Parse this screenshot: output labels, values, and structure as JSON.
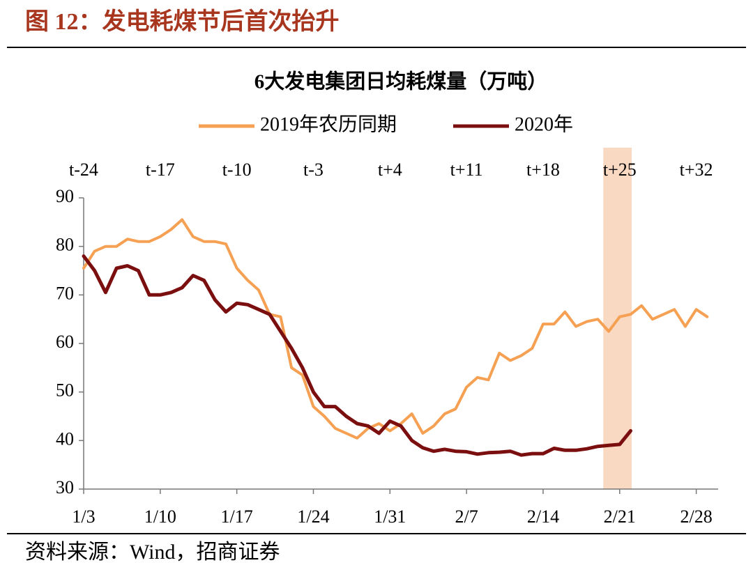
{
  "header": {
    "title": "图 12：发电耗煤节后首次抬升"
  },
  "footer": {
    "source": "资料来源：Wind，招商证券"
  },
  "chart_data": {
    "type": "line",
    "title": "6大发电集团日均耗煤量（万吨）",
    "xlim": [
      0,
      58
    ],
    "xticks": [
      {
        "value": 0,
        "label": "1/3"
      },
      {
        "value": 7,
        "label": "1/10"
      },
      {
        "value": 14,
        "label": "1/17"
      },
      {
        "value": 21,
        "label": "1/24"
      },
      {
        "value": 28,
        "label": "1/31"
      },
      {
        "value": 35,
        "label": "2/7"
      },
      {
        "value": 42,
        "label": "2/14"
      },
      {
        "value": 49,
        "label": "2/21"
      },
      {
        "value": 56,
        "label": "2/28"
      }
    ],
    "x2ticks": [
      {
        "value": 0,
        "label": "t-24"
      },
      {
        "value": 7,
        "label": "t-17"
      },
      {
        "value": 14,
        "label": "t-10"
      },
      {
        "value": 21,
        "label": "t-3"
      },
      {
        "value": 28,
        "label": "t+4"
      },
      {
        "value": 35,
        "label": "t+11"
      },
      {
        "value": 42,
        "label": "t+18"
      },
      {
        "value": 49,
        "label": "t+25"
      },
      {
        "value": 56,
        "label": "t+32"
      }
    ],
    "ylim": [
      30,
      90
    ],
    "yticks": [
      30,
      40,
      50,
      60,
      70,
      80,
      90
    ],
    "highlight": [
      47.5,
      50.1
    ],
    "highlight_color": "#f9d9c2",
    "series": [
      {
        "name": "2019年农历同期",
        "color": "#f5a052",
        "x": [
          0,
          1,
          2,
          3,
          4,
          5,
          6,
          7,
          8,
          9,
          10,
          11,
          12,
          13,
          14,
          15,
          16,
          17,
          18,
          19,
          20,
          21,
          22,
          23,
          24,
          25,
          26,
          27,
          28,
          29,
          30,
          31,
          32,
          33,
          34,
          35,
          36,
          37,
          38,
          39,
          40,
          41,
          42,
          43,
          44,
          45,
          46,
          47,
          48,
          49,
          50,
          51,
          52,
          53,
          54,
          55,
          56,
          57
        ],
        "values": [
          75.5,
          79,
          80,
          80,
          81.5,
          81,
          81,
          82,
          83.5,
          85.5,
          82,
          81,
          81,
          80.5,
          75.5,
          73,
          71,
          66,
          65.5,
          55,
          53.5,
          47,
          45,
          42.5,
          41.5,
          40.5,
          42.5,
          43.5,
          42,
          43.5,
          45.5,
          41.5,
          43,
          45.5,
          46.5,
          51,
          53,
          52.5,
          58,
          56.5,
          57.5,
          59,
          64,
          64,
          66.5,
          63.5,
          64.5,
          65,
          62.5,
          65.5,
          66,
          67.8,
          65,
          66,
          67,
          63.5,
          67,
          65.5
        ]
      },
      {
        "name": "2020年",
        "color": "#7b0f0f",
        "x": [
          0,
          1,
          2,
          3,
          4,
          5,
          6,
          7,
          8,
          9,
          10,
          11,
          12,
          13,
          14,
          15,
          16,
          17,
          18,
          19,
          20,
          21,
          22,
          23,
          24,
          25,
          26,
          27,
          28,
          29,
          30,
          31,
          32,
          33,
          34,
          35,
          36,
          37,
          38,
          39,
          40,
          41,
          42,
          43,
          44,
          45,
          46,
          47,
          48,
          49,
          50
        ],
        "values": [
          78,
          75,
          70.5,
          75.5,
          76,
          75,
          70,
          70,
          70.5,
          71.5,
          74,
          73,
          69,
          66.5,
          68.3,
          68,
          67,
          66,
          62.5,
          59,
          55,
          50,
          47,
          47,
          45,
          43.5,
          43,
          41.5,
          44,
          43,
          40,
          38.5,
          37.8,
          38.2,
          37.8,
          37.7,
          37.2,
          37.5,
          37.6,
          37.8,
          37,
          37.3,
          37.3,
          38.4,
          38,
          38,
          38.3,
          38.8,
          39,
          39.2,
          42
        ]
      }
    ]
  }
}
